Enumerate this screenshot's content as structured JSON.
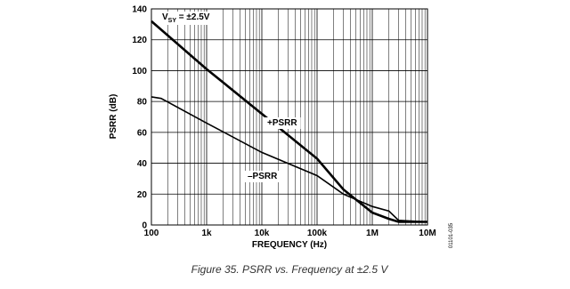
{
  "chart_data": {
    "type": "line",
    "x_label": "FREQUENCY (Hz)",
    "y_label": "PSRR (dB)",
    "caption": "Figure 35. PSRR vs. Frequency at ±2.5 V",
    "figure_code": "01101-035",
    "condition": {
      "main": "V",
      "subscript": "SY",
      "suffix": " = ±2.5V"
    },
    "xscale": "log",
    "xlim": [
      100,
      10000000
    ],
    "xticks": [
      100,
      {
        "value": 1000,
        "label": "1k"
      },
      {
        "value": 10000,
        "label": "10k"
      },
      {
        "value": 100000,
        "label": "100k"
      },
      {
        "value": 1000000,
        "label": "1M"
      },
      {
        "value": 10000000,
        "label": "10M"
      }
    ],
    "ylim": [
      0,
      140
    ],
    "yticks": [
      0,
      20,
      40,
      60,
      80,
      100,
      120,
      140
    ],
    "grid": true,
    "minor_x_grid": true,
    "series": [
      {
        "name": "+PSRR",
        "color": "#000000",
        "x": [
          100,
          1000,
          10000,
          100000,
          300000,
          1000000,
          2000000,
          3000000,
          10000000
        ],
        "values": [
          132,
          101,
          72,
          43,
          23,
          8,
          4,
          2,
          2
        ]
      },
      {
        "name": "–PSRR",
        "color": "#000000",
        "x": [
          100,
          150,
          1000,
          10000,
          100000,
          300000,
          1000000,
          2000000,
          3000000,
          10000000
        ],
        "values": [
          83,
          82,
          66,
          47,
          32,
          20,
          12,
          9,
          3,
          2
        ]
      }
    ]
  }
}
